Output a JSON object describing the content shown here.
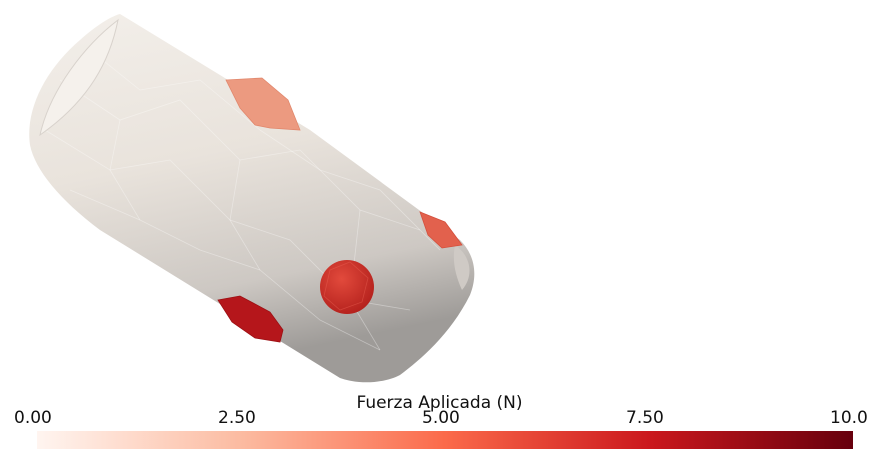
{
  "viewer": {
    "background_color": "#ffffff",
    "object": {
      "body_color": "#ece6df",
      "body_shadow_color": "#a9a5a2",
      "markers": [
        {
          "name": "marker-top",
          "color": "#ec9a80"
        },
        {
          "name": "marker-right",
          "color": "#e2614d"
        },
        {
          "name": "marker-center",
          "color": "#cf2f26"
        },
        {
          "name": "marker-bottom-left",
          "color": "#b5161b"
        }
      ]
    }
  },
  "colorbar": {
    "title": "Fuerza Aplicada (N)",
    "ticks": [
      "0.00",
      "2.50",
      "5.00",
      "7.50",
      "10.0"
    ],
    "range": [
      0,
      10
    ],
    "colors": [
      "#fff5f0",
      "#fcbba1",
      "#fb6a4a",
      "#cb181d",
      "#67000d"
    ]
  }
}
